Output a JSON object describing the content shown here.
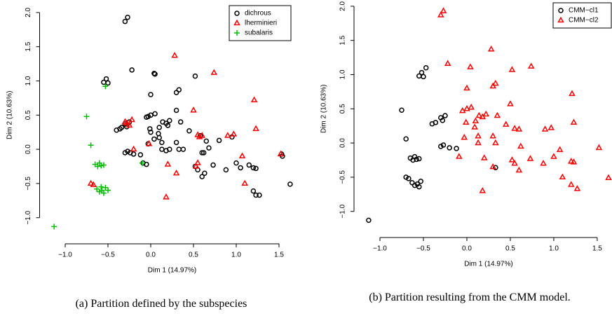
{
  "chart_data": [
    {
      "type": "scatter",
      "xlabel": "Dim 1 (14.97%)",
      "ylabel": "Dim 2 (10.63%)",
      "caption": "(a) Partition defined by the subspecies",
      "xlim": [
        -1.25,
        1.7
      ],
      "ylim": [
        -1.3,
        2.05
      ],
      "xticks": [
        {
          "value": -1,
          "label": "−1.0"
        },
        {
          "value": -0.5,
          "label": "−0.5"
        },
        {
          "value": 0,
          "label": "0.0"
        },
        0.5,
        {
          "value": 1,
          "label": "1.0"
        },
        1.5
      ],
      "yticks": [
        {
          "value": -1,
          "label": "−1.0"
        },
        {
          "value": -0.5,
          "label": "−0.5"
        },
        {
          "value": 0,
          "label": "0.0"
        },
        0.5,
        {
          "value": 1,
          "label": "1.0"
        },
        1.5,
        {
          "value": 2,
          "label": "2.0"
        }
      ],
      "legend": "top-right",
      "series": [
        {
          "name": "dichrous",
          "color": "#000000",
          "marker": "circle",
          "x": [
            -0.27,
            -0.3,
            -0.55,
            -0.52,
            -0.5,
            -0.22,
            0.04,
            0.05,
            0.3,
            0.33,
            0.0,
            0.52,
            -0.4,
            -0.36,
            -0.34,
            -0.3,
            -0.28,
            -0.25,
            -0.05,
            -0.03,
            0.0,
            0.05,
            0.1,
            0.14,
            0.18,
            0.2,
            0.22,
            0.3,
            0.35,
            0.45,
            -0.01,
            0.0,
            0.09,
            0.1,
            0.13,
            0.04,
            -0.03,
            0.3,
            0.33,
            0.38,
            0.58,
            0.65,
            -0.3,
            -0.27,
            -0.24,
            -0.2,
            -0.12,
            -0.09,
            -0.05,
            0.13,
            0.18,
            0.22,
            0.52,
            0.55,
            0.6,
            0.63,
            0.62,
            0.68,
            0.73,
            0.8,
            0.88,
            0.95,
            1.0,
            1.05,
            1.15,
            1.2,
            1.23,
            1.2,
            1.23,
            1.27,
            1.53,
            1.54,
            1.63,
            0.6
          ],
          "values": [
            1.93,
            1.87,
            0.98,
            1.03,
            0.97,
            1.16,
            1.11,
            1.1,
            0.83,
            0.87,
            0.8,
            1.07,
            0.28,
            0.3,
            0.32,
            0.37,
            0.33,
            0.4,
            0.47,
            0.48,
            0.5,
            0.52,
            0.32,
            0.4,
            0.38,
            0.35,
            0.42,
            0.57,
            0.4,
            0.27,
            0.3,
            0.25,
            0.23,
            0.17,
            0.1,
            0.15,
            0.08,
            0.1,
            0.0,
            0.0,
            0.2,
            0.12,
            -0.05,
            -0.03,
            -0.05,
            -0.07,
            -0.08,
            -0.2,
            -0.22,
            0.0,
            -0.02,
            0.0,
            -0.25,
            -0.3,
            -0.4,
            -0.35,
            -0.05,
            0.02,
            -0.23,
            0.13,
            -0.3,
            0.18,
            -0.2,
            -0.27,
            -0.23,
            -0.27,
            -0.28,
            -0.61,
            -0.67,
            -0.67,
            -0.07,
            -0.1,
            -0.51,
            -0.05
          ]
        },
        {
          "name": "lherminieri",
          "color": "#ff0000",
          "marker": "triangle",
          "x": [
            0.28,
            0.74,
            1.21,
            0.5,
            1.23,
            0.55,
            0.6,
            0.57,
            0.9,
            0.97,
            1.52,
            1.07,
            0.55,
            0.53,
            0.2,
            0.3,
            1.1,
            0.18,
            -0.3,
            -0.28,
            -0.25,
            -0.22,
            -0.2,
            -0.02,
            -0.7,
            -0.67
          ],
          "values": [
            1.37,
            1.12,
            0.72,
            0.57,
            0.3,
            0.21,
            0.2,
            0.18,
            0.2,
            0.22,
            -0.07,
            -0.1,
            -0.2,
            -0.25,
            -0.22,
            -0.35,
            -0.5,
            -0.7,
            0.4,
            0.38,
            0.35,
            0.43,
            0.0,
            0.08,
            -0.5,
            -0.52
          ]
        },
        {
          "name": "subalaris",
          "color": "#00c000",
          "marker": "plus",
          "x": [
            -1.13,
            -0.75,
            -0.7,
            -0.53,
            -0.1,
            -0.65,
            -0.62,
            -0.6,
            -0.58,
            -0.55,
            -0.63,
            -0.6,
            -0.57,
            -0.55,
            -0.53,
            -0.58,
            -0.5
          ],
          "values": [
            -1.13,
            0.48,
            0.06,
            0.92,
            -0.2,
            -0.22,
            -0.25,
            -0.2,
            -0.24,
            -0.23,
            -0.58,
            -0.62,
            -0.6,
            -0.64,
            -0.56,
            -0.55,
            -0.6
          ]
        }
      ]
    },
    {
      "type": "scatter",
      "xlabel": "Dim 1 (14.97%)",
      "ylabel": "Dim 2 (10.63%)",
      "caption": "(b) Partition resulting from the CMM model.",
      "xlim": [
        -1.25,
        1.67
      ],
      "ylim": [
        -1.3,
        2.05
      ],
      "xticks": [
        {
          "value": -1,
          "label": "−1.0"
        },
        {
          "value": -0.5,
          "label": "−0.5"
        },
        {
          "value": 0,
          "label": "0.0"
        },
        0.5,
        {
          "value": 1,
          "label": "1.0"
        },
        1.5
      ],
      "yticks": [
        {
          "value": -1,
          "label": "−1.0"
        },
        {
          "value": -0.5,
          "label": "−0.5"
        },
        {
          "value": 0,
          "label": "0.0"
        },
        0.5,
        {
          "value": 1,
          "label": "1.0"
        },
        1.5,
        {
          "value": 2,
          "label": "2.0"
        }
      ],
      "legend": "top-right",
      "series": [
        {
          "name": "CMM−cl1",
          "color": "#000000",
          "marker": "circle",
          "x": [
            -1.13,
            -0.75,
            -0.7,
            -0.55,
            -0.52,
            -0.5,
            -0.47,
            -0.4,
            -0.36,
            -0.3,
            -0.25,
            -0.28,
            -0.3,
            -0.27,
            -0.2,
            -0.12,
            0.33,
            -0.65,
            -0.62,
            -0.6,
            -0.58,
            -0.55,
            -0.63,
            -0.6,
            -0.57,
            -0.55,
            -0.53,
            -0.7,
            -0.67
          ],
          "values": [
            -1.13,
            0.48,
            0.06,
            0.98,
            1.03,
            0.97,
            1.1,
            0.28,
            0.3,
            0.37,
            0.4,
            0.33,
            -0.05,
            -0.03,
            -0.07,
            -0.08,
            -0.36,
            -0.22,
            -0.25,
            -0.2,
            -0.24,
            -0.23,
            -0.58,
            -0.62,
            -0.6,
            -0.64,
            -0.56,
            -0.5,
            -0.52
          ]
        },
        {
          "name": "CMM−cl2",
          "color": "#ff0000",
          "marker": "triangle",
          "x": [
            -0.27,
            -0.3,
            -0.22,
            0.04,
            0.28,
            0.0,
            0.3,
            0.33,
            0.52,
            0.74,
            1.21,
            -0.05,
            0.0,
            0.05,
            0.1,
            0.14,
            0.18,
            0.22,
            0.5,
            0.35,
            0.45,
            -0.01,
            0.09,
            0.13,
            -0.03,
            0.3,
            0.33,
            0.55,
            0.6,
            0.9,
            0.97,
            1.23,
            -0.09,
            0.13,
            0.2,
            0.3,
            0.52,
            0.55,
            0.6,
            0.62,
            0.73,
            0.88,
            1.0,
            1.07,
            1.1,
            1.2,
            1.23,
            1.2,
            1.27,
            1.52,
            1.63,
            0.18
          ],
          "values": [
            1.93,
            1.87,
            1.16,
            1.11,
            1.37,
            0.8,
            0.83,
            0.87,
            1.07,
            1.12,
            0.72,
            0.47,
            0.5,
            0.52,
            0.32,
            0.4,
            0.38,
            0.42,
            0.57,
            0.4,
            0.27,
            0.3,
            0.23,
            0.1,
            0.08,
            0.1,
            0.0,
            0.21,
            0.2,
            0.2,
            0.22,
            0.3,
            -0.2,
            0.0,
            -0.22,
            -0.35,
            -0.25,
            -0.3,
            -0.4,
            -0.05,
            -0.23,
            -0.3,
            -0.2,
            -0.1,
            -0.5,
            -0.27,
            -0.28,
            -0.61,
            -0.67,
            -0.07,
            -0.51,
            -0.7
          ]
        }
      ]
    }
  ]
}
